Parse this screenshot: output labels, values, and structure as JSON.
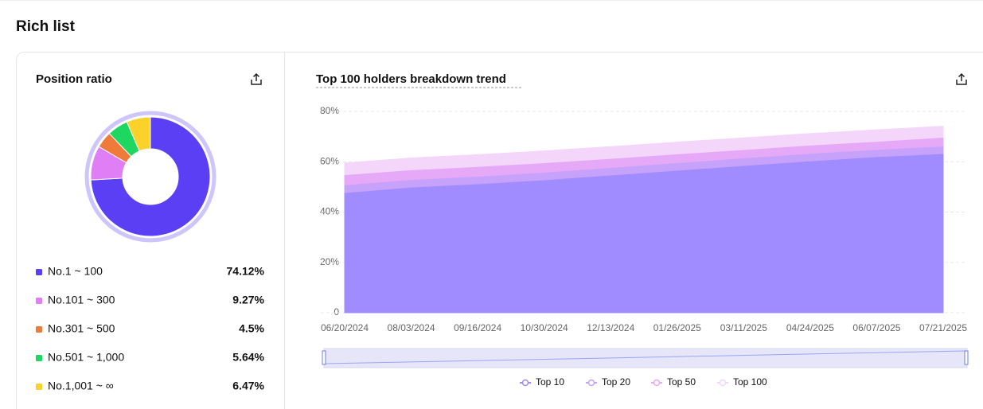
{
  "page_title": "Rich list",
  "chart_data": [
    {
      "type": "pie",
      "title": "Position ratio",
      "categories": [
        "No.1 ~ 100",
        "No.101 ~ 300",
        "No.301 ~ 500",
        "No.501 ~ 1,000",
        "No.1,001 ~ ∞"
      ],
      "values": [
        74.12,
        9.27,
        4.5,
        5.64,
        6.47
      ],
      "value_labels": [
        "74.12%",
        "9.27%",
        "4.5%",
        "5.64%",
        "6.47%"
      ],
      "colors": [
        "#5b3ff5",
        "#e07ef5",
        "#f07a3a",
        "#1ed760",
        "#fcd12a"
      ]
    },
    {
      "type": "area",
      "title": "Top 100 holders breakdown trend",
      "categories": [
        "06/20/2024",
        "08/03/2024",
        "09/16/2024",
        "10/30/2024",
        "12/13/2024",
        "01/26/2025",
        "03/11/2025",
        "04/24/2025",
        "06/07/2025",
        "07/21/2025"
      ],
      "series": [
        {
          "name": "Top 10",
          "color": "#a08cff",
          "values": [
            47.4,
            49.6,
            50.9,
            52.5,
            54.4,
            56.3,
            58.2,
            60,
            61.7,
            62.9
          ]
        },
        {
          "name": "Top 20",
          "color": "#c6a2fb",
          "values": [
            50.5,
            52.6,
            53.9,
            55.5,
            57.4,
            59.3,
            61.2,
            63,
            64.6,
            65.9
          ]
        },
        {
          "name": "Top 50",
          "color": "#e6a9f8",
          "values": [
            54.5,
            56.5,
            57.8,
            59.3,
            61,
            62.8,
            64.5,
            66.3,
            67.8,
            69.4
          ]
        },
        {
          "name": "Top 100",
          "color": "#f4d6fb",
          "values": [
            59.5,
            61.5,
            62.8,
            64.3,
            66,
            67.8,
            69.5,
            71.2,
            72.7,
            74.1
          ]
        }
      ],
      "ylim": [
        0,
        80
      ],
      "yticks": [
        0,
        {
          "value": 20,
          "label": "20%"
        },
        {
          "value": 40,
          "label": "40%"
        },
        {
          "value": 60,
          "label": "60%"
        },
        {
          "value": 80,
          "label": "80%"
        }
      ],
      "grid": true
    }
  ]
}
